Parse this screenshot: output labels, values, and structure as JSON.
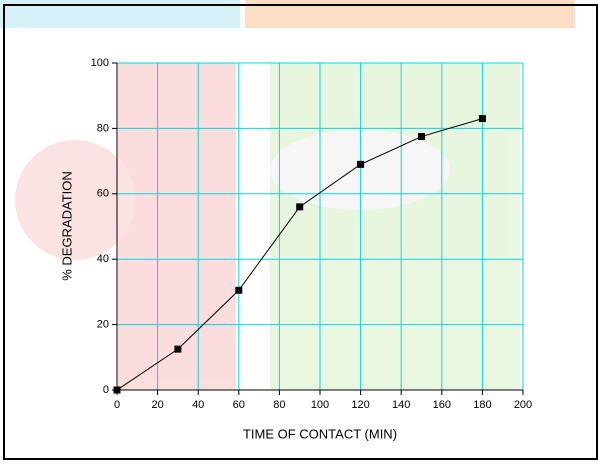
{
  "chart_data": {
    "type": "line",
    "x_label": "TIME OF CONTACT (MIN)",
    "y_label": "% DEGRADATION",
    "x": [
      0,
      30,
      60,
      90,
      120,
      150,
      180
    ],
    "series": [
      {
        "color": "#000000",
        "values": [
          0,
          12.5,
          30.5,
          56,
          69,
          77.5,
          83
        ]
      }
    ],
    "xlim": [
      0,
      200
    ],
    "xticks": [
      0,
      20,
      40,
      60,
      80,
      100,
      120,
      140,
      160,
      180,
      200
    ],
    "ylim": [
      0,
      100
    ],
    "yticks": [
      0,
      20,
      40,
      60,
      80,
      100
    ],
    "grid": true,
    "grid_color": "#00d8e8",
    "marker": "square"
  }
}
